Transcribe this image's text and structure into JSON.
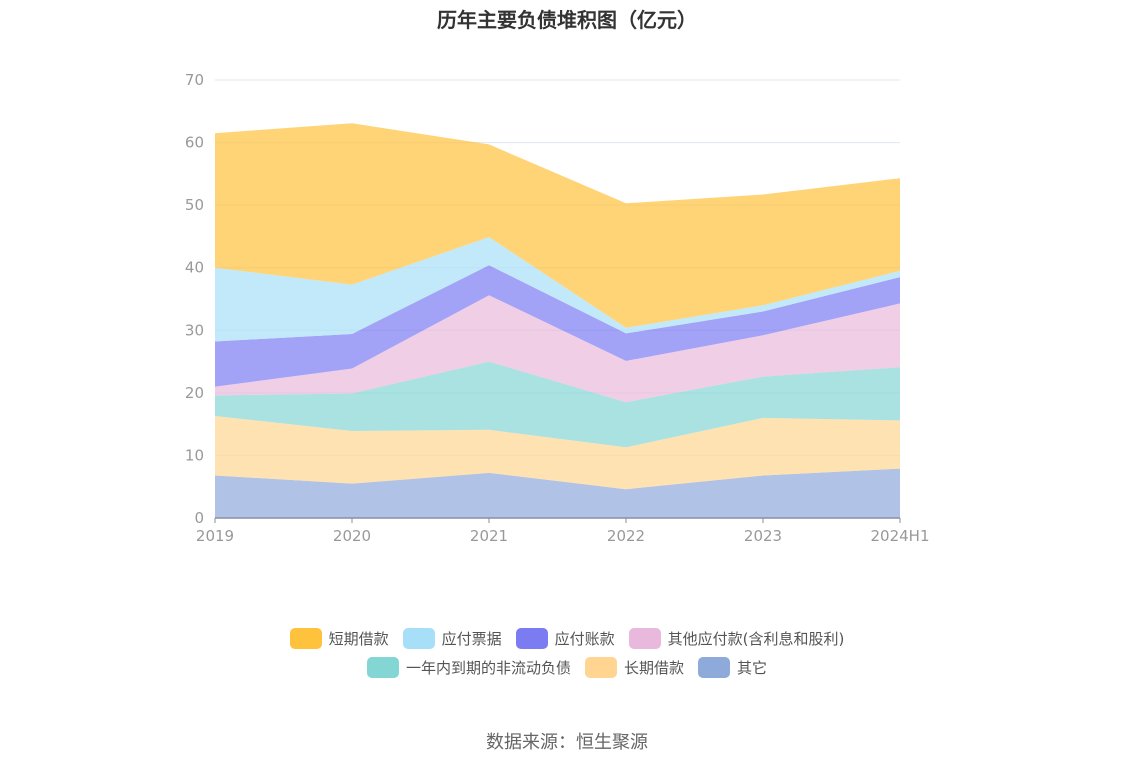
{
  "chart_data": {
    "type": "area",
    "stacked": true,
    "title": "历年主要负债堆积图（亿元）",
    "categories": [
      "2019",
      "2020",
      "2021",
      "2022",
      "2023",
      "2024H1"
    ],
    "ylim": [
      0,
      70
    ],
    "yticks": [
      0,
      10,
      20,
      30,
      40,
      50,
      60,
      70
    ],
    "grid": true,
    "legend_position": "bottom",
    "series": [
      {
        "name": "其它",
        "color": "#8eaadb",
        "values": [
          6.8,
          5.5,
          7.2,
          4.6,
          6.8,
          7.9
        ]
      },
      {
        "name": "长期借款",
        "color": "#ffd591",
        "values": [
          9.5,
          8.4,
          6.9,
          6.7,
          9.2,
          7.7
        ]
      },
      {
        "name": "一年内到期的非流动负债",
        "color": "#84d6d4",
        "values": [
          3.3,
          6.0,
          10.9,
          7.2,
          6.6,
          8.5
        ]
      },
      {
        "name": "其他应付款(含利息和股利)",
        "color": "#e8b9dc",
        "values": [
          1.4,
          4.0,
          10.6,
          6.6,
          6.6,
          10.2
        ]
      },
      {
        "name": "应付账款",
        "color": "#7b7bf2",
        "values": [
          7.2,
          5.5,
          4.8,
          4.4,
          3.8,
          4.2
        ]
      },
      {
        "name": "应付票据",
        "color": "#a8dff8",
        "values": [
          11.8,
          7.9,
          4.5,
          0.9,
          1.0,
          1.0
        ]
      },
      {
        "name": "短期借款",
        "color": "#ffc23d",
        "values": [
          21.5,
          25.8,
          14.8,
          19.9,
          17.7,
          14.8
        ]
      }
    ]
  },
  "legend": [
    {
      "name": "短期借款",
      "color": "#ffc23d"
    },
    {
      "name": "应付票据",
      "color": "#a8dff8"
    },
    {
      "name": "应付账款",
      "color": "#7b7bf2"
    },
    {
      "name": "其他应付款(含利息和股利)",
      "color": "#e8b9dc"
    },
    {
      "name": "一年内到期的非流动负债",
      "color": "#84d6d4"
    },
    {
      "name": "长期借款",
      "color": "#ffd591"
    },
    {
      "name": "其它",
      "color": "#8eaadb"
    }
  ],
  "source": "数据来源：恒生聚源"
}
